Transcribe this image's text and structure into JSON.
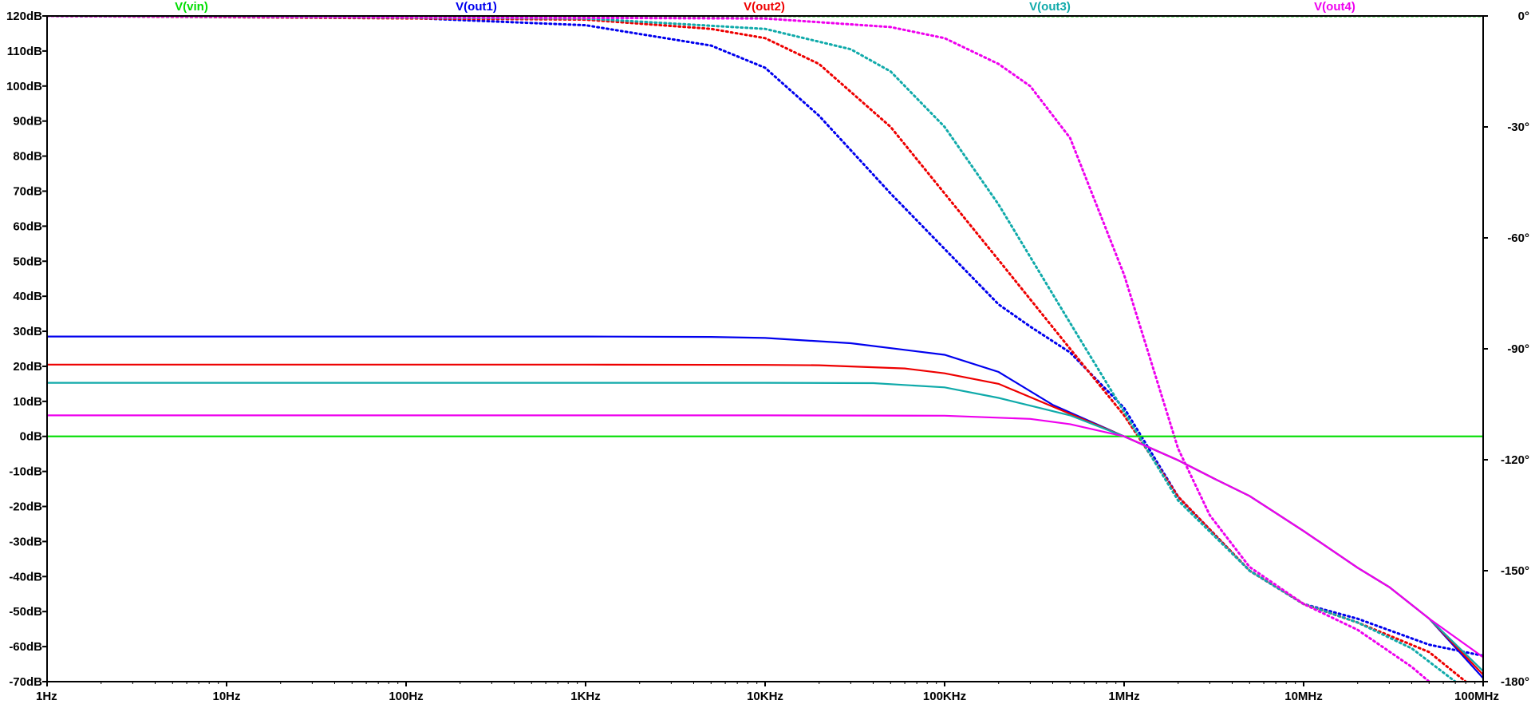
{
  "chart_data": {
    "type": "line",
    "x_scale": "log",
    "xlim": [
      1,
      100000000
    ],
    "ylim": [
      -70,
      120
    ],
    "y2lim": [
      -180,
      0
    ],
    "grid": false,
    "legend_position": "top",
    "x_ticks": [
      {
        "value": 1,
        "label": "1Hz"
      },
      {
        "value": 10,
        "label": "10Hz"
      },
      {
        "value": 100,
        "label": "100Hz"
      },
      {
        "value": 1000,
        "label": "1KHz"
      },
      {
        "value": 10000,
        "label": "10KHz"
      },
      {
        "value": 100000,
        "label": "100KHz"
      },
      {
        "value": 1000000,
        "label": "1MHz"
      },
      {
        "value": 10000000,
        "label": "10MHz"
      },
      {
        "value": 100000000,
        "label": "100MHz"
      }
    ],
    "y_ticks": [
      {
        "value": 120,
        "label": "120dB"
      },
      {
        "value": 110,
        "label": "110dB"
      },
      {
        "value": 100,
        "label": "100dB"
      },
      {
        "value": 90,
        "label": "90dB"
      },
      {
        "value": 80,
        "label": "80dB"
      },
      {
        "value": 70,
        "label": "70dB"
      },
      {
        "value": 60,
        "label": "60dB"
      },
      {
        "value": 50,
        "label": "50dB"
      },
      {
        "value": 40,
        "label": "40dB"
      },
      {
        "value": 30,
        "label": "30dB"
      },
      {
        "value": 20,
        "label": "20dB"
      },
      {
        "value": 10,
        "label": "10dB"
      },
      {
        "value": 0,
        "label": "0dB"
      },
      {
        "value": -10,
        "label": "-10dB"
      },
      {
        "value": -20,
        "label": "-20dB"
      },
      {
        "value": -30,
        "label": "-30dB"
      },
      {
        "value": -40,
        "label": "-40dB"
      },
      {
        "value": -50,
        "label": "-50dB"
      },
      {
        "value": -60,
        "label": "-60dB"
      },
      {
        "value": -70,
        "label": "-70dB"
      }
    ],
    "y2_ticks": [
      {
        "value": 0,
        "label": "0°"
      },
      {
        "value": -30,
        "label": "-30°"
      },
      {
        "value": -60,
        "label": "-60°"
      },
      {
        "value": -90,
        "label": "-90°"
      },
      {
        "value": -120,
        "label": "-120°"
      },
      {
        "value": -150,
        "label": "-150°"
      },
      {
        "value": -180,
        "label": "-180°"
      }
    ],
    "series": [
      {
        "name": "V(vin)",
        "color": "#00dd00",
        "magnitude": [
          [
            1,
            0
          ],
          [
            100000000,
            0
          ]
        ],
        "phase": [
          [
            1,
            0
          ],
          [
            100000000,
            0
          ]
        ]
      },
      {
        "name": "V(out1)",
        "color": "#0000ee",
        "magnitude": [
          [
            1,
            28.5
          ],
          [
            1000,
            28.5
          ],
          [
            5000,
            28.4
          ],
          [
            10000,
            28.1
          ],
          [
            30000,
            26.6
          ],
          [
            100000,
            23.3
          ],
          [
            200000,
            18.4
          ],
          [
            400000,
            9.0
          ],
          [
            1000000,
            0
          ],
          [
            2000000,
            -6.8
          ],
          [
            3160000,
            -12
          ],
          [
            5000000,
            -17
          ],
          [
            10000000,
            -27
          ],
          [
            20000000,
            -37.5
          ],
          [
            30000000,
            -43
          ],
          [
            50000000,
            -52
          ],
          [
            100000000,
            -69
          ]
        ],
        "phase": [
          [
            1,
            0
          ],
          [
            100,
            -0.5
          ],
          [
            1000,
            -2.5
          ],
          [
            5000,
            -8
          ],
          [
            10000,
            -14
          ],
          [
            20000,
            -27
          ],
          [
            50000,
            -48
          ],
          [
            100000,
            -63
          ],
          [
            200000,
            -78
          ],
          [
            300000,
            -84
          ],
          [
            500000,
            -91
          ],
          [
            1000000,
            -106
          ],
          [
            2000000,
            -130
          ],
          [
            5000000,
            -150
          ],
          [
            10000000,
            -159
          ],
          [
            20000000,
            -163
          ],
          [
            50000000,
            -170
          ],
          [
            100000000,
            -173
          ]
        ]
      },
      {
        "name": "V(out2)",
        "color": "#ee0000",
        "magnitude": [
          [
            1,
            20.5
          ],
          [
            1000,
            20.5
          ],
          [
            10000,
            20.4
          ],
          [
            20000,
            20.3
          ],
          [
            60000,
            19.4
          ],
          [
            100000,
            18
          ],
          [
            200000,
            15
          ],
          [
            400000,
            8.5
          ],
          [
            1000000,
            0
          ],
          [
            2000000,
            -6.8
          ],
          [
            3160000,
            -12
          ],
          [
            5000000,
            -17
          ],
          [
            10000000,
            -27
          ],
          [
            20000000,
            -37.5
          ],
          [
            30000000,
            -43
          ],
          [
            50000000,
            -52
          ],
          [
            100000000,
            -68
          ]
        ],
        "phase": [
          [
            1,
            0
          ],
          [
            1000,
            -1
          ],
          [
            5000,
            -3.5
          ],
          [
            10000,
            -6
          ],
          [
            20000,
            -13
          ],
          [
            50000,
            -30
          ],
          [
            100000,
            -48
          ],
          [
            200000,
            -66
          ],
          [
            500000,
            -90
          ],
          [
            1000000,
            -108
          ],
          [
            2000000,
            -130
          ],
          [
            5000000,
            -150
          ],
          [
            10000000,
            -159
          ],
          [
            20000000,
            -164
          ],
          [
            50000000,
            -172
          ],
          [
            80000000,
            -180
          ]
        ]
      },
      {
        "name": "V(out3)",
        "color": "#10aaaa",
        "magnitude": [
          [
            1,
            15.3
          ],
          [
            1000,
            15.3
          ],
          [
            10000,
            15.3
          ],
          [
            40000,
            15.2
          ],
          [
            100000,
            14
          ],
          [
            200000,
            11
          ],
          [
            500000,
            6
          ],
          [
            1000000,
            0
          ],
          [
            2000000,
            -6.8
          ],
          [
            3160000,
            -12
          ],
          [
            5000000,
            -17
          ],
          [
            10000000,
            -27
          ],
          [
            20000000,
            -37.5
          ],
          [
            30000000,
            -43
          ],
          [
            50000000,
            -52
          ],
          [
            100000000,
            -67
          ]
        ],
        "phase": [
          [
            1,
            0
          ],
          [
            1000,
            -0.7
          ],
          [
            10000,
            -3.5
          ],
          [
            30000,
            -9
          ],
          [
            50000,
            -15
          ],
          [
            100000,
            -30
          ],
          [
            200000,
            -51
          ],
          [
            500000,
            -83
          ],
          [
            1000000,
            -107
          ],
          [
            2000000,
            -131
          ],
          [
            5000000,
            -150
          ],
          [
            10000000,
            -159
          ],
          [
            20000000,
            -164
          ],
          [
            40000000,
            -171
          ],
          [
            70000000,
            -180
          ]
        ]
      },
      {
        "name": "V(out4)",
        "color": "#ee00ee",
        "magnitude": [
          [
            1,
            6
          ],
          [
            1000,
            6
          ],
          [
            10000,
            6
          ],
          [
            100000,
            5.9
          ],
          [
            300000,
            5
          ],
          [
            500000,
            3.5
          ],
          [
            1000000,
            0
          ],
          [
            2000000,
            -6.8
          ],
          [
            3160000,
            -12
          ],
          [
            5000000,
            -17
          ],
          [
            10000000,
            -27
          ],
          [
            20000000,
            -37.5
          ],
          [
            30000000,
            -43
          ],
          [
            50000000,
            -52
          ],
          [
            100000000,
            -63
          ]
        ],
        "phase": [
          [
            1,
            0
          ],
          [
            10000,
            -0.7
          ],
          [
            50000,
            -3
          ],
          [
            100000,
            -6
          ],
          [
            200000,
            -13
          ],
          [
            300000,
            -19
          ],
          [
            500000,
            -33
          ],
          [
            1000000,
            -70
          ],
          [
            2000000,
            -117
          ],
          [
            3000000,
            -135
          ],
          [
            5000000,
            -149
          ],
          [
            10000000,
            -159
          ],
          [
            20000000,
            -166
          ],
          [
            40000000,
            -176
          ],
          [
            50000000,
            -180
          ]
        ]
      }
    ]
  }
}
